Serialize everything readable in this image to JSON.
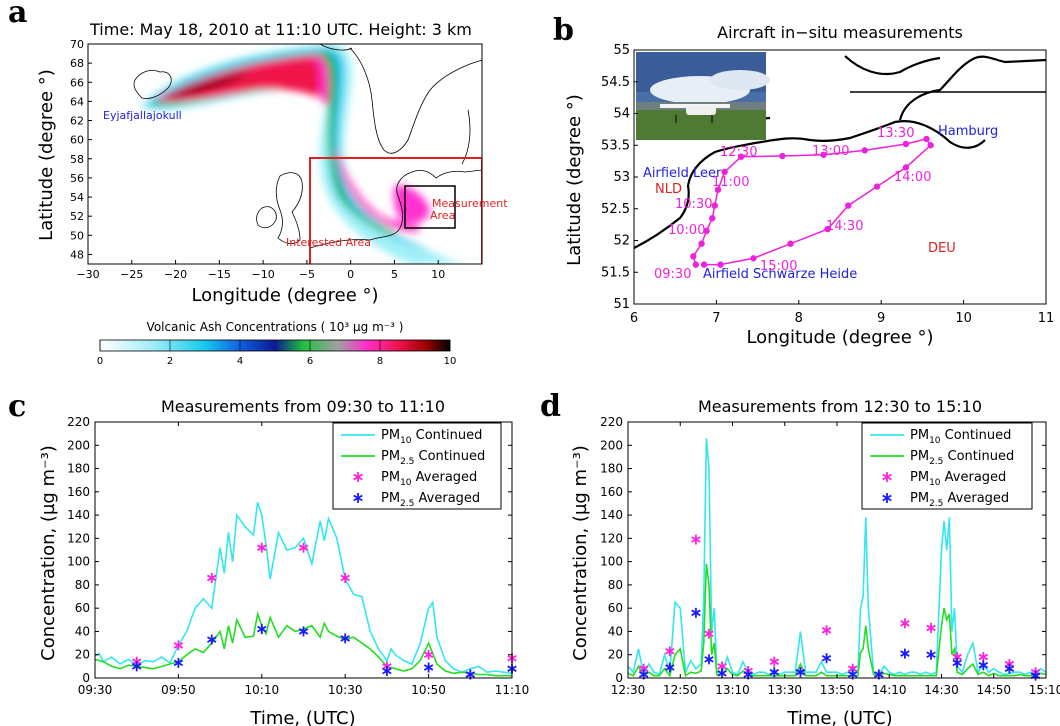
{
  "panels": {
    "a": {
      "label": "a",
      "title": "Time: May 18, 2010 at 11:10 UTC.  Height: 3 km",
      "xlabel": "Longitude (degree °)",
      "ylabel": "Latitude (degree °)",
      "xticks": [
        "−30",
        "−25",
        "−20",
        "−15",
        "−10",
        "−5",
        "0",
        "5",
        "10"
      ],
      "yticks": [
        "48",
        "50",
        "52",
        "54",
        "56",
        "58",
        "60",
        "62",
        "64",
        "66",
        "68",
        "70"
      ],
      "source_label": "Eyjafjallajokull",
      "interest_label": "Interested Area",
      "measurement_label_1": "Measurement",
      "measurement_label_2": "Area",
      "colorbar_title": "Volcanic Ash Concentrations ( 10³ µg m⁻³ )",
      "colorbar_ticks": [
        "0",
        "2",
        "4",
        "6",
        "8",
        "10"
      ]
    },
    "b": {
      "label": "b",
      "title": "Aircraft in−situ measurements",
      "xlabel": "Longitude (degree °)",
      "ylabel": "Latitude (degree °)",
      "xticks": [
        "6",
        "7",
        "8",
        "9",
        "10",
        "11"
      ],
      "yticks": [
        "51",
        "51.5",
        "52",
        "52.5",
        "53",
        "53.5",
        "54",
        "54.5",
        "55"
      ],
      "places": {
        "hamburg": "Hamburg",
        "leer": "Airfield Leer",
        "nld": "NLD",
        "deu": "DEU",
        "heide": "Airfield Schwarze Heide"
      },
      "times": [
        "09:30",
        "10:00",
        "10:30",
        "11:00",
        "12:30",
        "13:00",
        "13:30",
        "14:00",
        "14:30",
        "15:00"
      ]
    },
    "c": {
      "label": "c",
      "title": "Measurements from 09:30 to 11:10",
      "xlabel": "Time, (UTC)",
      "ylabel": "Concentration, (µg m⁻³)",
      "xticks": [
        "09:30",
        "09:50",
        "10:10",
        "10:30",
        "10:50",
        "11:10"
      ],
      "yticks": [
        "0",
        "20",
        "40",
        "60",
        "80",
        "100",
        "120",
        "140",
        "160",
        "180",
        "200",
        "220"
      ],
      "legend": [
        {
          "base": "PM",
          "sub": "10",
          "rest": " Continued"
        },
        {
          "base": "PM",
          "sub": "2.5",
          "rest": " Continued"
        },
        {
          "base": "PM",
          "sub": "10",
          "rest": " Averaged"
        },
        {
          "base": "PM",
          "sub": "2.5",
          "rest": " Averaged"
        }
      ]
    },
    "d": {
      "label": "d",
      "title": "Measurements from 12:30 to 15:10",
      "xlabel": "Time, (UTC)",
      "ylabel": "Concentration, (µg m⁻³)",
      "xticks": [
        "12:30",
        "12:50",
        "13:10",
        "13:30",
        "13:50",
        "14:10",
        "14:30",
        "14:50",
        "15:10"
      ],
      "yticks": [
        "0",
        "20",
        "40",
        "60",
        "80",
        "100",
        "120",
        "140",
        "160",
        "180",
        "200",
        "220"
      ],
      "legend": [
        {
          "base": "PM",
          "sub": "10",
          "rest": " Continued"
        },
        {
          "base": "PM",
          "sub": "2.5",
          "rest": " Continued"
        },
        {
          "base": "PM",
          "sub": "10",
          "rest": " Averaged"
        },
        {
          "base": "PM",
          "sub": "2.5",
          "rest": " Averaged"
        }
      ]
    }
  },
  "colors": {
    "pm10": "#33e6f0",
    "pm25": "#22dd22",
    "pm10_avg": "#ff22dd",
    "pm25_avg": "#1a1aff",
    "track": "#ee22dd",
    "red": "#e02020",
    "blue": "#2222dd"
  },
  "chart_data": [
    {
      "type": "line",
      "title": "Measurements from 09:30 to 11:10",
      "xlabel": "Time, (UTC)",
      "ylabel": "Concentration, (µg m⁻³)",
      "xlim_minutes_of_day": [
        570,
        670
      ],
      "ylim": [
        0,
        220
      ],
      "series": [
        {
          "name": "PM10 Continued",
          "style": "line",
          "x": [
            570,
            571,
            572,
            574,
            576,
            578,
            580,
            582,
            584,
            586,
            588,
            590,
            592,
            594,
            596,
            598,
            600,
            601,
            602,
            603,
            604,
            606,
            608,
            609,
            610,
            611,
            612,
            614,
            616,
            618,
            620,
            622,
            624,
            625,
            626,
            628,
            630,
            632,
            634,
            636,
            638,
            640,
            641,
            642,
            644,
            646,
            648,
            650,
            651,
            652,
            654,
            656,
            658,
            660,
            662,
            664,
            666,
            668,
            670
          ],
          "y": [
            19,
            21,
            14,
            18,
            12,
            16,
            11,
            15,
            14,
            18,
            13,
            28,
            40,
            60,
            68,
            60,
            112,
            90,
            125,
            100,
            140,
            130,
            123,
            151,
            140,
            115,
            85,
            125,
            110,
            112,
            120,
            98,
            135,
            118,
            137,
            120,
            85,
            72,
            70,
            40,
            25,
            15,
            25,
            20,
            15,
            12,
            30,
            60,
            65,
            35,
            15,
            8,
            5,
            8,
            10,
            5,
            6,
            5,
            4
          ]
        },
        {
          "name": "PM2.5 Continued",
          "style": "line",
          "x": [
            570,
            572,
            574,
            576,
            578,
            580,
            582,
            584,
            586,
            588,
            590,
            592,
            594,
            596,
            598,
            600,
            601,
            602,
            603,
            604,
            606,
            608,
            609,
            610,
            611,
            612,
            614,
            616,
            618,
            620,
            622,
            624,
            625,
            626,
            628,
            630,
            632,
            634,
            636,
            638,
            640,
            642,
            644,
            646,
            648,
            650,
            652,
            654,
            656,
            658,
            660,
            662,
            664,
            666,
            668,
            670
          ],
          "y": [
            16,
            14,
            10,
            8,
            11,
            10,
            9,
            8,
            10,
            12,
            14,
            20,
            25,
            22,
            30,
            40,
            25,
            45,
            30,
            50,
            35,
            36,
            55,
            45,
            38,
            52,
            35,
            45,
            40,
            42,
            45,
            35,
            47,
            40,
            36,
            33,
            35,
            30,
            25,
            18,
            10,
            8,
            6,
            8,
            15,
            30,
            12,
            6,
            4,
            5,
            4,
            3,
            3,
            2,
            2,
            2
          ]
        },
        {
          "name": "PM10 Averaged",
          "style": "marker",
          "x": [
            580,
            590,
            598,
            610,
            620,
            630,
            640,
            650,
            660,
            670
          ],
          "y": [
            14,
            28,
            86,
            112,
            112,
            86,
            10,
            20,
            3,
            17
          ]
        },
        {
          "name": "PM2.5 Averaged",
          "style": "marker",
          "x": [
            580,
            590,
            598,
            610,
            620,
            630,
            640,
            650,
            660,
            670
          ],
          "y": [
            10,
            13,
            33,
            42,
            40,
            34,
            6,
            9,
            3,
            8
          ]
        }
      ]
    },
    {
      "type": "line",
      "title": "Measurements from 12:30 to 15:10",
      "xlabel": "Time, (UTC)",
      "ylabel": "Concentration, (µg m⁻³)",
      "xlim_minutes_of_day": [
        750,
        910
      ],
      "ylim": [
        0,
        220
      ],
      "series": [
        {
          "name": "PM10 Continued",
          "style": "line",
          "x": [
            750,
            752,
            754,
            756,
            758,
            760,
            762,
            764,
            766,
            768,
            770,
            772,
            774,
            776,
            778,
            779,
            780,
            781,
            782,
            783,
            784,
            786,
            788,
            790,
            792,
            794,
            796,
            798,
            800,
            802,
            804,
            806,
            808,
            810,
            812,
            814,
            816,
            818,
            820,
            822,
            824,
            826,
            828,
            830,
            832,
            834,
            836,
            838,
            839,
            840,
            841,
            842,
            844,
            846,
            848,
            850,
            852,
            854,
            856,
            858,
            860,
            862,
            864,
            866,
            868,
            870,
            871,
            872,
            873,
            874,
            875,
            876,
            878,
            880,
            882,
            884,
            886,
            888,
            890,
            892,
            894,
            896,
            898,
            900,
            902,
            904,
            906,
            908,
            910
          ],
          "y": [
            10,
            5,
            25,
            3,
            12,
            5,
            3,
            20,
            5,
            65,
            60,
            5,
            15,
            8,
            12,
            68,
            206,
            180,
            40,
            60,
            5,
            5,
            18,
            5,
            3,
            14,
            5,
            3,
            5,
            5,
            3,
            5,
            3,
            5,
            5,
            5,
            40,
            5,
            5,
            5,
            14,
            5,
            5,
            5,
            3,
            5,
            5,
            5,
            60,
            70,
            138,
            60,
            5,
            3,
            10,
            5,
            3,
            5,
            3,
            5,
            5,
            3,
            5,
            3,
            5,
            110,
            135,
            110,
            138,
            40,
            60,
            10,
            5,
            20,
            30,
            5,
            12,
            5,
            8,
            5,
            3,
            4,
            5,
            5,
            3,
            5,
            3,
            8,
            5
          ]
        },
        {
          "name": "PM2.5 Continued",
          "style": "line",
          "x": [
            750,
            752,
            754,
            756,
            758,
            760,
            762,
            764,
            766,
            768,
            770,
            772,
            774,
            776,
            778,
            779,
            780,
            781,
            782,
            783,
            784,
            786,
            788,
            790,
            792,
            794,
            796,
            798,
            800,
            802,
            804,
            806,
            808,
            810,
            812,
            814,
            816,
            818,
            820,
            822,
            824,
            826,
            828,
            830,
            832,
            834,
            836,
            838,
            839,
            840,
            841,
            842,
            844,
            846,
            848,
            850,
            852,
            854,
            856,
            858,
            860,
            862,
            864,
            866,
            868,
            870,
            871,
            872,
            873,
            874,
            875,
            876,
            878,
            880,
            882,
            884,
            886,
            888,
            890,
            892,
            894,
            896,
            898,
            900,
            902,
            904,
            906,
            908,
            910
          ],
          "y": [
            4,
            2,
            10,
            2,
            5,
            2,
            2,
            8,
            2,
            20,
            25,
            2,
            5,
            4,
            6,
            30,
            98,
            80,
            20,
            30,
            3,
            3,
            8,
            3,
            2,
            6,
            3,
            2,
            2,
            2,
            2,
            2,
            2,
            2,
            2,
            2,
            12,
            2,
            2,
            2,
            5,
            2,
            2,
            2,
            2,
            2,
            2,
            2,
            22,
            25,
            45,
            25,
            3,
            2,
            4,
            3,
            2,
            2,
            2,
            2,
            2,
            2,
            2,
            2,
            2,
            45,
            60,
            50,
            55,
            20,
            25,
            5,
            3,
            8,
            12,
            3,
            5,
            2,
            4,
            2,
            2,
            2,
            2,
            3,
            2,
            2,
            2,
            4,
            3
          ]
        },
        {
          "name": "PM10 Averaged",
          "style": "marker",
          "x": [
            756,
            766,
            776,
            781,
            786,
            796,
            806,
            816,
            826,
            836,
            846,
            856,
            866,
            876,
            886,
            896,
            906
          ],
          "y": [
            8,
            23,
            119,
            38,
            10,
            6,
            14,
            5,
            41,
            8,
            3,
            47,
            43,
            18,
            18,
            12,
            5
          ]
        },
        {
          "name": "PM2.5 Averaged",
          "style": "marker",
          "x": [
            756,
            766,
            776,
            781,
            786,
            796,
            806,
            816,
            826,
            836,
            846,
            856,
            866,
            876,
            886,
            896,
            906
          ],
          "y": [
            3,
            9,
            56,
            16,
            4,
            3,
            5,
            5,
            17,
            3,
            3,
            21,
            20,
            13,
            11,
            8,
            2
          ]
        }
      ]
    }
  ]
}
